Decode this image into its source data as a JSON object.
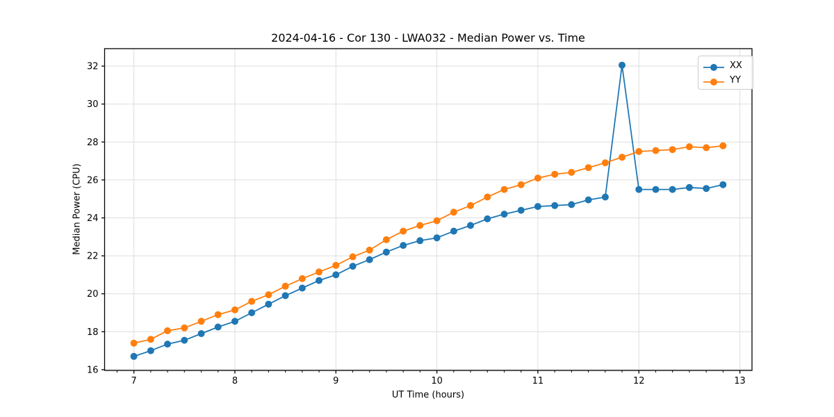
{
  "chart_data": {
    "type": "line",
    "title": "2024-04-16 - Cor 130 - LWA032 - Median Power vs. Time",
    "xlabel": "UT Time (hours)",
    "ylabel": "Median Power (CPU)",
    "xlim": [
      6.71,
      13.12
    ],
    "ylim": [
      15.96,
      32.92
    ],
    "xticks": [
      7,
      8,
      9,
      10,
      11,
      12,
      13
    ],
    "yticks": [
      16,
      18,
      20,
      22,
      24,
      26,
      28,
      30,
      32
    ],
    "x_minor_ticks_per_major": 6,
    "grid": true,
    "legend_position": "upper right",
    "x": [
      7.0,
      7.167,
      7.333,
      7.5,
      7.667,
      7.833,
      8.0,
      8.167,
      8.333,
      8.5,
      8.667,
      8.833,
      9.0,
      9.167,
      9.333,
      9.5,
      9.667,
      9.833,
      10.0,
      10.167,
      10.333,
      10.5,
      10.667,
      10.833,
      11.0,
      11.167,
      11.333,
      11.5,
      11.667,
      11.833,
      12.0,
      12.167,
      12.333,
      12.5,
      12.667,
      12.833
    ],
    "series": [
      {
        "name": "XX",
        "color": "#1f77b4",
        "values": [
          16.7,
          17.0,
          17.35,
          17.55,
          17.9,
          18.25,
          18.55,
          19.0,
          19.45,
          19.9,
          20.3,
          20.7,
          21.0,
          21.45,
          21.8,
          22.2,
          22.55,
          22.8,
          22.95,
          23.3,
          23.6,
          23.95,
          24.2,
          24.4,
          24.6,
          24.65,
          24.7,
          24.95,
          25.1,
          32.05,
          25.5,
          25.5,
          25.5,
          25.6,
          25.55,
          25.75
        ]
      },
      {
        "name": "YY",
        "color": "#ff7f0e",
        "values": [
          17.4,
          17.6,
          18.05,
          18.2,
          18.55,
          18.9,
          19.15,
          19.6,
          19.95,
          20.4,
          20.8,
          21.15,
          21.5,
          21.95,
          22.3,
          22.85,
          23.3,
          23.6,
          23.85,
          24.3,
          24.65,
          25.1,
          25.5,
          25.75,
          26.1,
          26.3,
          26.4,
          26.65,
          26.9,
          27.2,
          27.5,
          27.55,
          27.6,
          27.75,
          27.7,
          27.8
        ]
      }
    ]
  },
  "colors": {
    "background": "#ffffff",
    "grid": "#dedede",
    "spine": "#000000",
    "tick": "#000000",
    "text": "#000000",
    "legend_border": "#cccccc"
  }
}
